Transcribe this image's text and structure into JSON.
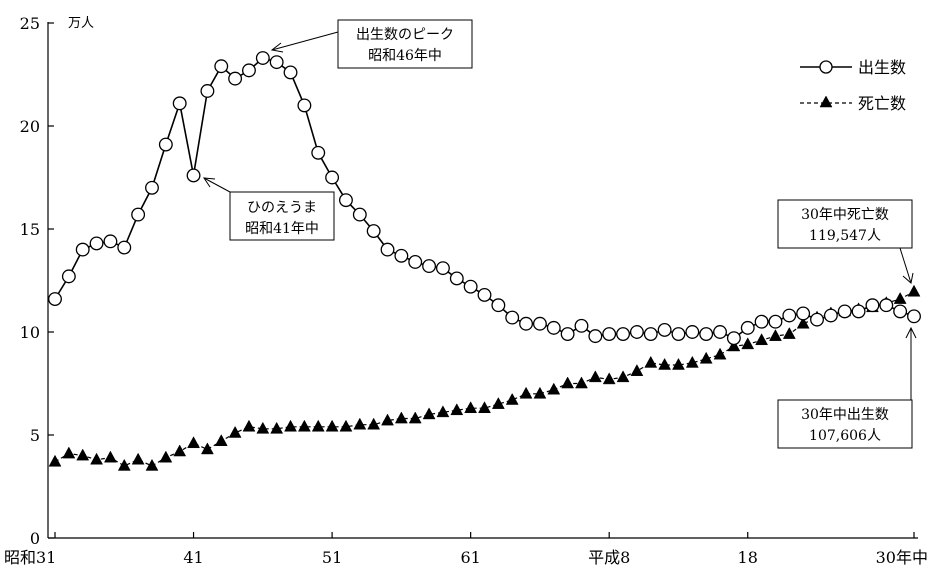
{
  "chart_data": {
    "type": "line",
    "ylabel_unit": "万人",
    "ylim": [
      0,
      25
    ],
    "yticks": [
      0,
      5,
      10,
      15,
      20,
      25
    ],
    "xlim": [
      1956,
      2018
    ],
    "xticks": [
      {
        "x": 1956,
        "label": "昭和31"
      },
      {
        "x": 1966,
        "label": "41"
      },
      {
        "x": 1976,
        "label": "51"
      },
      {
        "x": 1986,
        "label": "61"
      },
      {
        "x": 1996,
        "label": "平成8"
      },
      {
        "x": 2006,
        "label": "18"
      },
      {
        "x": 2018,
        "label": "30年中"
      }
    ],
    "x": [
      1956,
      1957,
      1958,
      1959,
      1960,
      1961,
      1962,
      1963,
      1964,
      1965,
      1966,
      1967,
      1968,
      1969,
      1970,
      1971,
      1972,
      1973,
      1974,
      1975,
      1976,
      1977,
      1978,
      1979,
      1980,
      1981,
      1982,
      1983,
      1984,
      1985,
      1986,
      1987,
      1988,
      1989,
      1990,
      1991,
      1992,
      1993,
      1994,
      1995,
      1996,
      1997,
      1998,
      1999,
      2000,
      2001,
      2002,
      2003,
      2004,
      2005,
      2006,
      2007,
      2008,
      2009,
      2010,
      2011,
      2012,
      2013,
      2014,
      2015,
      2016,
      2017,
      2018
    ],
    "series": [
      {
        "name": "出生数",
        "marker": "circle",
        "values": [
          11.6,
          12.7,
          14.0,
          14.3,
          14.4,
          14.1,
          15.7,
          17.0,
          19.1,
          21.1,
          17.6,
          21.7,
          22.9,
          22.3,
          22.7,
          23.3,
          23.1,
          22.6,
          21.0,
          18.7,
          17.5,
          16.4,
          15.7,
          14.9,
          14.0,
          13.7,
          13.4,
          13.2,
          13.1,
          12.6,
          12.2,
          11.8,
          11.3,
          10.7,
          10.4,
          10.4,
          10.2,
          9.9,
          10.3,
          9.8,
          9.9,
          9.9,
          10.0,
          9.9,
          10.1,
          9.9,
          10.0,
          9.9,
          10.0,
          9.7,
          10.2,
          10.5,
          10.5,
          10.8,
          10.9,
          10.6,
          10.8,
          11.0,
          11.0,
          11.3,
          11.3,
          11.0,
          10.7606
        ]
      },
      {
        "name": "死亡数",
        "marker": "triangle",
        "values": [
          3.7,
          4.1,
          4.0,
          3.8,
          3.9,
          3.5,
          3.8,
          3.5,
          3.9,
          4.2,
          4.6,
          4.3,
          4.7,
          5.1,
          5.4,
          5.3,
          5.3,
          5.4,
          5.4,
          5.4,
          5.4,
          5.4,
          5.5,
          5.5,
          5.7,
          5.8,
          5.8,
          6.0,
          6.1,
          6.2,
          6.3,
          6.3,
          6.5,
          6.7,
          7.0,
          7.0,
          7.2,
          7.5,
          7.5,
          7.8,
          7.7,
          7.8,
          8.1,
          8.5,
          8.4,
          8.4,
          8.5,
          8.7,
          8.9,
          9.3,
          9.4,
          9.6,
          9.8,
          9.9,
          10.4,
          10.7,
          10.9,
          11.0,
          11.1,
          11.2,
          11.4,
          11.6,
          11.9547
        ]
      }
    ],
    "legend": {
      "position": "top-right",
      "entries": [
        "出生数",
        "死亡数"
      ]
    },
    "annotations": {
      "peak": [
        "出生数のピーク",
        "昭和46年中"
      ],
      "hinoeuma": [
        "ひのえうま",
        "昭和41年中"
      ],
      "deaths_2018": [
        "30年中死亡数",
        "119,547人"
      ],
      "births_2018": [
        "30年中出生数",
        "107,606人"
      ]
    }
  }
}
